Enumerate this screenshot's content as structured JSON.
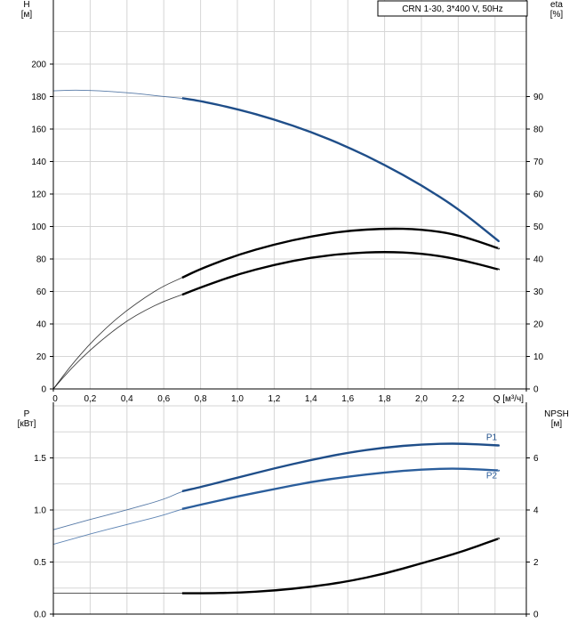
{
  "chart_data": [
    {
      "type": "line",
      "legend_box": "CRN 1-30, 3*400 V, 50Hz",
      "xlabel": "Q [м³/ч]",
      "x_ticks": [
        "0",
        "0,2",
        "0,4",
        "0,6",
        "0,8",
        "1,0",
        "1,2",
        "1,4",
        "1,6",
        "1,8",
        "2,0",
        "2,2"
      ],
      "xlim": [
        0,
        2.6
      ],
      "grid": true,
      "y_left": {
        "label_line1": "H",
        "label_line2": "[м]",
        "ylim": [
          0,
          220
        ],
        "ticks": [
          "0",
          "20",
          "40",
          "60",
          "80",
          "100",
          "120",
          "140",
          "160",
          "180",
          "200"
        ]
      },
      "y_right": {
        "label_line1": "eta",
        "label_line2": "[%]",
        "ylim": [
          0,
          110
        ],
        "ticks": [
          "0",
          "10",
          "20",
          "30",
          "40",
          "50",
          "60",
          "70",
          "80",
          "90"
        ]
      },
      "series": [
        {
          "axis": "left",
          "color": "#1f4e89",
          "operating_range": [
            0.69,
            2.42
          ],
          "x": [
            0,
            0.1,
            0.2,
            0.3,
            0.4,
            0.5,
            0.6,
            0.7,
            0.8,
            1.0,
            1.2,
            1.4,
            1.6,
            1.8,
            2.0,
            2.2,
            2.42
          ],
          "y": [
            183.5,
            184,
            183.8,
            183.2,
            182.4,
            181.3,
            180,
            179,
            177.3,
            172.3,
            166,
            158.3,
            149,
            138,
            125.5,
            111,
            91
          ]
        },
        {
          "axis": "left",
          "color": "#000000",
          "operating_range": [
            0.69,
            2.42
          ],
          "x": [
            0,
            0.1,
            0.2,
            0.3,
            0.4,
            0.5,
            0.6,
            0.7,
            0.8,
            1.0,
            1.2,
            1.4,
            1.6,
            1.8,
            2.0,
            2.2,
            2.42
          ],
          "y": [
            0,
            15,
            28,
            39,
            48.5,
            56.5,
            63.5,
            68.5,
            74,
            82.5,
            89,
            94,
            97.4,
            98.8,
            98.3,
            95,
            86.5
          ]
        },
        {
          "axis": "left",
          "color": "#000000",
          "operating_range": [
            0.69,
            2.42
          ],
          "x": [
            0,
            0.1,
            0.2,
            0.3,
            0.4,
            0.5,
            0.6,
            0.7,
            0.8,
            1.0,
            1.2,
            1.4,
            1.6,
            1.8,
            2.0,
            2.2,
            2.42
          ],
          "y": [
            0,
            13,
            24,
            33.5,
            42,
            48.5,
            54,
            58,
            62.5,
            70.5,
            76.5,
            81,
            83.5,
            84.5,
            83.5,
            80,
            73.5
          ]
        }
      ]
    },
    {
      "type": "line",
      "x_ticks": [],
      "xlim": [
        0,
        2.6
      ],
      "grid": true,
      "y_left": {
        "label_line1": "P",
        "label_line2": "[кВт]",
        "ylim": [
          0,
          2.0
        ],
        "ticks": [
          "0.0",
          "0.5",
          "1.0",
          "1.5"
        ]
      },
      "y_right": {
        "label_line1": "NPSH",
        "label_line2": "[м]",
        "ylim": [
          0,
          8
        ],
        "ticks": [
          "0",
          "2",
          "4",
          "6"
        ]
      },
      "series": [
        {
          "name": "P1",
          "axis": "left",
          "color": "#1f4e89",
          "operating_range": [
            0.69,
            2.42
          ],
          "x": [
            0,
            0.2,
            0.4,
            0.6,
            0.7,
            0.8,
            1.0,
            1.2,
            1.4,
            1.6,
            1.8,
            2.0,
            2.2,
            2.42
          ],
          "y": [
            0.81,
            0.91,
            1.0,
            1.1,
            1.18,
            1.22,
            1.31,
            1.4,
            1.48,
            1.55,
            1.6,
            1.63,
            1.64,
            1.62
          ]
        },
        {
          "name": "P2",
          "axis": "left",
          "color": "#2b5e9c",
          "operating_range": [
            0.69,
            2.42
          ],
          "x": [
            0,
            0.2,
            0.4,
            0.6,
            0.7,
            0.8,
            1.0,
            1.2,
            1.4,
            1.6,
            1.8,
            2.0,
            2.2,
            2.42
          ],
          "y": [
            0.67,
            0.77,
            0.86,
            0.95,
            1.01,
            1.05,
            1.13,
            1.2,
            1.27,
            1.32,
            1.36,
            1.39,
            1.4,
            1.38
          ]
        },
        {
          "axis": "right",
          "color": "#000000",
          "operating_range": [
            0.69,
            2.42
          ],
          "x": [
            0,
            0.2,
            0.4,
            0.6,
            0.7,
            0.8,
            1.0,
            1.2,
            1.4,
            1.6,
            1.8,
            2.0,
            2.2,
            2.42
          ],
          "y": [
            0.8,
            0.8,
            0.8,
            0.8,
            0.8,
            0.8,
            0.82,
            0.9,
            1.05,
            1.25,
            1.55,
            1.95,
            2.35,
            2.9
          ]
        }
      ]
    }
  ]
}
